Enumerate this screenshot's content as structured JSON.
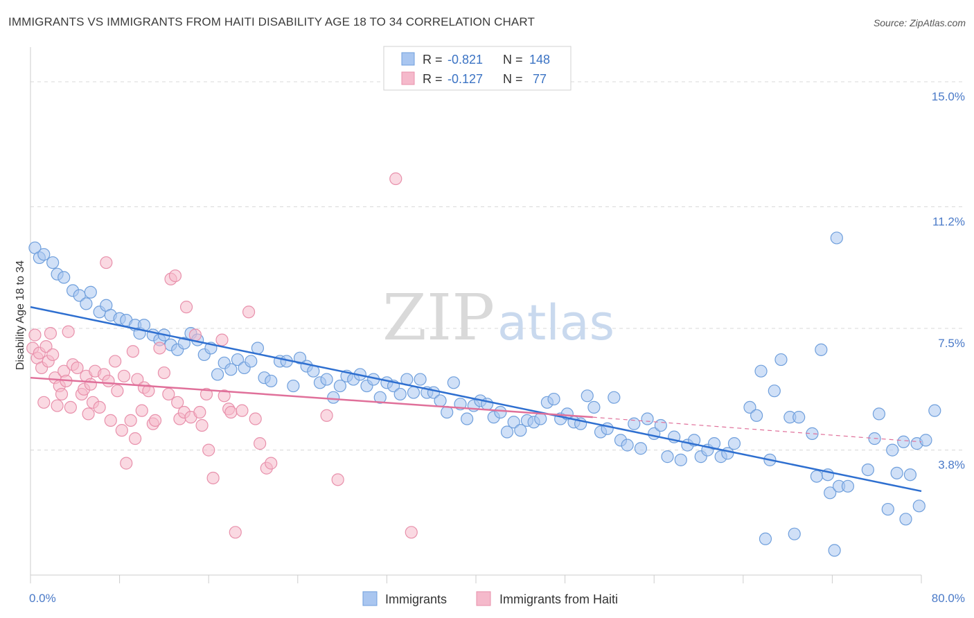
{
  "title": "IMMIGRANTS VS IMMIGRANTS FROM HAITI DISABILITY AGE 18 TO 34 CORRELATION CHART",
  "source": "Source: ZipAtlas.com",
  "watermark": {
    "zip": "ZIP",
    "atlas": "atlas"
  },
  "colors": {
    "blue_fill": "#a9c6f0",
    "blue_stroke": "#6f9fdc",
    "blue_line": "#2e6fd0",
    "pink_fill": "#f5b9cb",
    "pink_stroke": "#e890ab",
    "pink_line": "#e0709a",
    "grid": "#d8d8d8",
    "tick_text": "#4a7ac8"
  },
  "legend": {
    "rows": [
      {
        "r_label": "R =",
        "r_value": "-0.821",
        "n_label": "N =",
        "n_value": "148",
        "color": "blue"
      },
      {
        "r_label": "R =",
        "r_value": "-0.127",
        "n_label": "N =",
        "n_value": " 77",
        "color": "pink"
      }
    ]
  },
  "chart_data": {
    "type": "scatter",
    "xlabel": "",
    "ylabel": "Disability Age 18 to 34",
    "xlim": [
      0,
      80
    ],
    "ylim": [
      0,
      15.8
    ],
    "x_tick_labels": [
      "0.0%",
      "80.0%"
    ],
    "y_ticks": [
      3.8,
      7.5,
      11.2,
      15.0
    ],
    "y_tick_labels": [
      "3.8%",
      "7.5%",
      "11.2%",
      "15.0%"
    ],
    "grid": "horizontal dashed",
    "legend_placement": "top-center",
    "series": [
      {
        "name": "Immigrants",
        "color": "blue",
        "r": -0.821,
        "n": 148,
        "trend": {
          "x0": 0,
          "y0": 8.15,
          "x1": 80,
          "y1": 2.55
        },
        "points": [
          [
            0.4,
            9.95
          ],
          [
            0.8,
            9.65
          ],
          [
            1.2,
            9.75
          ],
          [
            2,
            9.5
          ],
          [
            2.4,
            9.15
          ],
          [
            3,
            9.05
          ],
          [
            3.8,
            8.65
          ],
          [
            4.4,
            8.5
          ],
          [
            5,
            8.25
          ],
          [
            5.4,
            8.6
          ],
          [
            6.2,
            8.0
          ],
          [
            6.8,
            8.2
          ],
          [
            7.2,
            7.9
          ],
          [
            8,
            7.8
          ],
          [
            8.6,
            7.75
          ],
          [
            9.4,
            7.6
          ],
          [
            9.8,
            7.35
          ],
          [
            10.2,
            7.6
          ],
          [
            11,
            7.3
          ],
          [
            11.6,
            7.15
          ],
          [
            12,
            7.3
          ],
          [
            12.6,
            7.0
          ],
          [
            13.2,
            6.85
          ],
          [
            13.8,
            7.05
          ],
          [
            14.4,
            7.35
          ],
          [
            15,
            7.15
          ],
          [
            15.6,
            6.7
          ],
          [
            16.2,
            6.9
          ],
          [
            16.8,
            6.1
          ],
          [
            17.4,
            6.45
          ],
          [
            18,
            6.25
          ],
          [
            18.6,
            6.55
          ],
          [
            19.2,
            6.3
          ],
          [
            19.8,
            6.5
          ],
          [
            20.4,
            6.9
          ],
          [
            21,
            6.0
          ],
          [
            21.6,
            5.9
          ],
          [
            22.4,
            6.5
          ],
          [
            23,
            6.5
          ],
          [
            23.6,
            5.75
          ],
          [
            24.2,
            6.6
          ],
          [
            24.8,
            6.35
          ],
          [
            25.4,
            6.2
          ],
          [
            26,
            5.85
          ],
          [
            26.6,
            5.95
          ],
          [
            27.2,
            5.4
          ],
          [
            27.8,
            5.75
          ],
          [
            28.4,
            6.05
          ],
          [
            29,
            5.95
          ],
          [
            29.6,
            6.1
          ],
          [
            30.2,
            5.75
          ],
          [
            30.8,
            5.95
          ],
          [
            31.4,
            5.4
          ],
          [
            32,
            5.85
          ],
          [
            32.6,
            5.75
          ],
          [
            33.2,
            5.5
          ],
          [
            33.8,
            5.95
          ],
          [
            34.4,
            5.55
          ],
          [
            35,
            5.95
          ],
          [
            35.6,
            5.55
          ],
          [
            36.2,
            5.55
          ],
          [
            36.8,
            5.3
          ],
          [
            37.4,
            4.95
          ],
          [
            38,
            5.85
          ],
          [
            38.6,
            5.2
          ],
          [
            39.2,
            4.75
          ],
          [
            39.8,
            5.15
          ],
          [
            40.4,
            5.3
          ],
          [
            41,
            5.2
          ],
          [
            41.6,
            4.8
          ],
          [
            42.2,
            4.95
          ],
          [
            42.8,
            4.35
          ],
          [
            43.4,
            4.65
          ],
          [
            44,
            4.4
          ],
          [
            44.6,
            4.7
          ],
          [
            45.2,
            4.65
          ],
          [
            45.8,
            4.75
          ],
          [
            46.4,
            5.25
          ],
          [
            47,
            5.35
          ],
          [
            47.6,
            4.75
          ],
          [
            48.2,
            4.9
          ],
          [
            48.8,
            4.65
          ],
          [
            49.4,
            4.6
          ],
          [
            50,
            5.45
          ],
          [
            50.6,
            5.1
          ],
          [
            51.2,
            4.35
          ],
          [
            51.8,
            4.45
          ],
          [
            52.4,
            5.4
          ],
          [
            53,
            4.1
          ],
          [
            53.6,
            3.95
          ],
          [
            54.2,
            4.6
          ],
          [
            54.8,
            3.85
          ],
          [
            55.4,
            4.75
          ],
          [
            56,
            4.3
          ],
          [
            56.6,
            4.55
          ],
          [
            57.2,
            3.6
          ],
          [
            57.8,
            4.2
          ],
          [
            58.4,
            3.5
          ],
          [
            59,
            3.95
          ],
          [
            59.6,
            4.1
          ],
          [
            60.2,
            3.6
          ],
          [
            60.8,
            3.8
          ],
          [
            61.4,
            4.0
          ],
          [
            62,
            3.6
          ],
          [
            62.6,
            3.7
          ],
          [
            63.2,
            4.0
          ],
          [
            64.6,
            5.1
          ],
          [
            65.2,
            4.85
          ],
          [
            65.6,
            6.2
          ],
          [
            66,
            1.1
          ],
          [
            66.4,
            3.5
          ],
          [
            66.8,
            5.6
          ],
          [
            67.4,
            6.55
          ],
          [
            68.2,
            4.8
          ],
          [
            68.6,
            1.25
          ],
          [
            69,
            4.8
          ],
          [
            70.2,
            4.3
          ],
          [
            70.6,
            3.0
          ],
          [
            71,
            6.85
          ],
          [
            71.6,
            3.05
          ],
          [
            71.8,
            2.5
          ],
          [
            72.6,
            2.7
          ],
          [
            73.4,
            2.7
          ],
          [
            75.2,
            3.2
          ],
          [
            75.8,
            4.15
          ],
          [
            76.2,
            4.9
          ],
          [
            77,
            2.0
          ],
          [
            77.4,
            3.8
          ],
          [
            77.8,
            3.1
          ],
          [
            78.4,
            4.05
          ],
          [
            78.6,
            1.7
          ],
          [
            79,
            3.05
          ],
          [
            79.6,
            4.0
          ],
          [
            79.8,
            2.1
          ],
          [
            80.4,
            4.1
          ],
          [
            81.2,
            5.0
          ],
          [
            72.4,
            10.25
          ],
          [
            72.2,
            0.75
          ]
        ]
      },
      {
        "name": "Immigrants from Haiti",
        "color": "pink",
        "r": -0.127,
        "n": 77,
        "trend": {
          "x0": 0,
          "y0": 6.0,
          "x1": 50.5,
          "y1": 4.8
        },
        "trend_extension": {
          "x0": 50.5,
          "y0": 4.8,
          "x1": 80,
          "y1": 4.05
        },
        "points": [
          [
            0.2,
            6.9
          ],
          [
            0.4,
            7.3
          ],
          [
            0.6,
            6.6
          ],
          [
            0.8,
            6.75
          ],
          [
            1,
            6.3
          ],
          [
            1.2,
            5.25
          ],
          [
            1.4,
            6.95
          ],
          [
            1.6,
            6.5
          ],
          [
            1.8,
            7.35
          ],
          [
            2,
            6.7
          ],
          [
            2.2,
            6.0
          ],
          [
            2.4,
            5.15
          ],
          [
            2.6,
            5.75
          ],
          [
            2.8,
            5.5
          ],
          [
            3,
            6.2
          ],
          [
            3.2,
            5.9
          ],
          [
            3.4,
            7.4
          ],
          [
            3.6,
            5.1
          ],
          [
            3.8,
            6.4
          ],
          [
            4.2,
            6.3
          ],
          [
            4.6,
            5.5
          ],
          [
            4.8,
            5.65
          ],
          [
            5,
            6.05
          ],
          [
            5.2,
            4.9
          ],
          [
            5.4,
            5.8
          ],
          [
            5.6,
            5.25
          ],
          [
            5.8,
            6.2
          ],
          [
            6.2,
            5.1
          ],
          [
            6.6,
            6.1
          ],
          [
            6.8,
            9.5
          ],
          [
            7,
            5.9
          ],
          [
            7.2,
            4.7
          ],
          [
            7.6,
            6.5
          ],
          [
            7.8,
            5.6
          ],
          [
            8.2,
            4.4
          ],
          [
            8.4,
            6.05
          ],
          [
            8.6,
            3.4
          ],
          [
            9,
            4.7
          ],
          [
            9.2,
            6.8
          ],
          [
            9.4,
            4.15
          ],
          [
            9.6,
            5.95
          ],
          [
            10,
            5.0
          ],
          [
            10.2,
            5.7
          ],
          [
            10.6,
            5.6
          ],
          [
            11,
            4.6
          ],
          [
            11.2,
            4.7
          ],
          [
            11.6,
            6.9
          ],
          [
            12,
            6.15
          ],
          [
            12.4,
            5.5
          ],
          [
            12.6,
            9.0
          ],
          [
            13,
            9.1
          ],
          [
            13.2,
            5.25
          ],
          [
            13.4,
            4.75
          ],
          [
            13.8,
            4.95
          ],
          [
            14,
            8.15
          ],
          [
            14.4,
            4.8
          ],
          [
            14.8,
            7.3
          ],
          [
            15.2,
            4.95
          ],
          [
            15.4,
            4.55
          ],
          [
            15.8,
            5.5
          ],
          [
            16,
            3.8
          ],
          [
            16.4,
            2.95
          ],
          [
            17.2,
            7.15
          ],
          [
            17.4,
            5.45
          ],
          [
            17.8,
            5.05
          ],
          [
            18,
            4.95
          ],
          [
            18.4,
            1.3
          ],
          [
            19,
            5.0
          ],
          [
            19.6,
            8.0
          ],
          [
            20.2,
            4.75
          ],
          [
            20.6,
            4.0
          ],
          [
            21.2,
            3.25
          ],
          [
            21.6,
            3.4
          ],
          [
            26.6,
            4.85
          ],
          [
            27.6,
            2.9
          ],
          [
            32.8,
            12.05
          ],
          [
            34.2,
            1.3
          ]
        ]
      }
    ]
  },
  "bottom_legend": [
    {
      "label": "Immigrants",
      "color": "blue"
    },
    {
      "label": "Immigrants from Haiti",
      "color": "pink"
    }
  ]
}
